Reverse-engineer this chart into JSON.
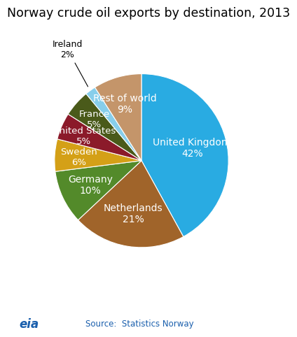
{
  "title": "Norway crude oil exports by destination, 2013",
  "slices": [
    {
      "label": "United Kingdom",
      "pct": "42%",
      "value": 42,
      "color": "#29ABE2"
    },
    {
      "label": "Netherlands",
      "pct": "21%",
      "value": 21,
      "color": "#A0642A"
    },
    {
      "label": "Germany",
      "pct": "10%",
      "value": 10,
      "color": "#538A2A"
    },
    {
      "label": "Sweden",
      "pct": "6%",
      "value": 6,
      "color": "#D4A017"
    },
    {
      "label": "United States",
      "pct": "5%",
      "value": 5,
      "color": "#8B1A2A"
    },
    {
      "label": "France",
      "pct": "5%",
      "value": 5,
      "color": "#4A5A1A"
    },
    {
      "label": "Ireland",
      "pct": "2%",
      "value": 2,
      "color": "#87CEEB"
    },
    {
      "label": "Rest of world",
      "pct": "9%",
      "value": 9,
      "color": "#C4956A"
    }
  ],
  "source_text": "Source:  Statistics Norway",
  "background_color": "#FFFFFF",
  "title_fontsize": 12.5,
  "inside_label_fontsize": 10,
  "outside_label_fontsize": 9
}
